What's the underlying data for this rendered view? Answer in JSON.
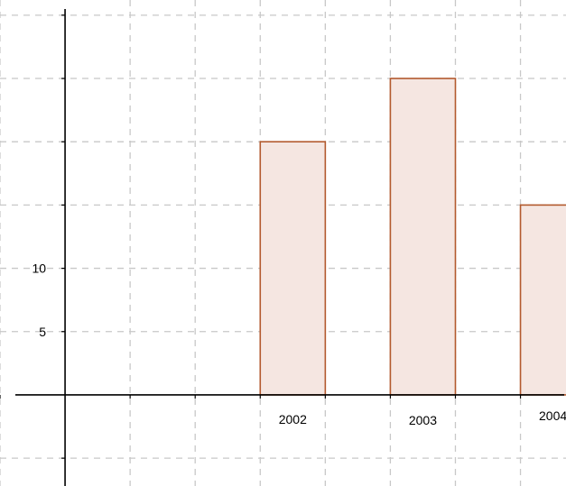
{
  "chart_data": {
    "type": "bar",
    "categories": [
      "2002",
      "2003",
      "2004"
    ],
    "category_x": [
      3.5,
      5.5,
      7.5
    ],
    "bar_width": 1,
    "values": [
      20,
      25,
      15
    ],
    "title": "",
    "xlabel": "",
    "ylabel": "",
    "xlim": [
      -1,
      7.7
    ],
    "ylim": [
      -7.2,
      31.2
    ],
    "x_grid_step": 1,
    "y_grid_step": 5,
    "y_tick_labels": [
      "5",
      "10"
    ],
    "grid": true,
    "legend": "none",
    "colors": {
      "bar_fill": "#f5e6e1",
      "bar_stroke": "#b35a2e"
    }
  }
}
